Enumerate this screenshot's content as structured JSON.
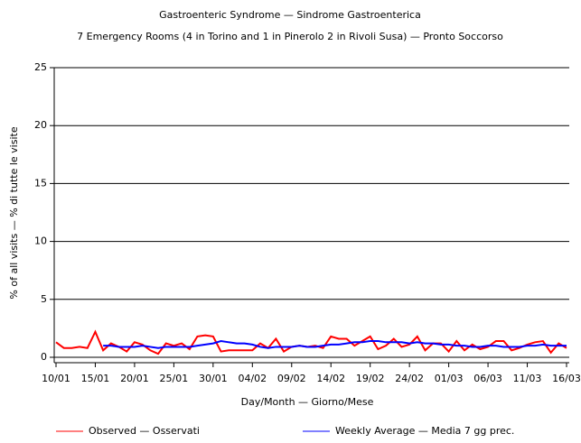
{
  "chart_data": {
    "type": "line",
    "title": "Gastroenteric Syndrome — Sindrome Gastroenterica",
    "subtitle": "7 Emergency Rooms (4 in Torino and 1 in Pinerolo 2 in Rivoli Susa) — Pronto Soccorso",
    "x_label": "Day/Month — Giorno/Mese",
    "y_label": "% of all visits — % di tutte le visite",
    "categories": [
      "10/01",
      null,
      null,
      null,
      null,
      "15/01",
      null,
      null,
      null,
      null,
      "20/01",
      null,
      null,
      null,
      null,
      "25/01",
      null,
      null,
      null,
      null,
      "30/01",
      null,
      null,
      null,
      null,
      "04/02",
      null,
      null,
      null,
      null,
      "09/02",
      null,
      null,
      null,
      null,
      "14/02",
      null,
      null,
      null,
      null,
      "19/02",
      null,
      null,
      null,
      null,
      "24/02",
      null,
      null,
      null,
      null,
      "01/03",
      null,
      null,
      null,
      null,
      "06/03",
      null,
      null,
      null,
      null,
      "11/03",
      null,
      null,
      null,
      null,
      "16/03"
    ],
    "series": [
      {
        "name": "Observed — Osservati",
        "color": "#ff0000",
        "values": [
          1.3,
          0.8,
          0.8,
          0.9,
          0.8,
          2.2,
          0.6,
          1.2,
          0.9,
          0.5,
          1.3,
          1.1,
          0.6,
          0.3,
          1.2,
          1.0,
          1.2,
          0.7,
          1.8,
          1.9,
          1.8,
          0.5,
          0.6,
          0.6,
          0.6,
          0.6,
          1.2,
          0.8,
          1.6,
          0.5,
          0.9,
          1.0,
          0.9,
          1.0,
          0.8,
          1.8,
          1.6,
          1.6,
          1.0,
          1.4,
          1.8,
          0.7,
          1.0,
          1.6,
          0.9,
          1.1,
          1.8,
          0.6,
          1.2,
          1.2,
          0.5,
          1.4,
          0.6,
          1.1,
          0.7,
          0.9,
          1.4,
          1.4,
          0.6,
          0.8,
          1.1,
          1.3,
          1.4,
          0.4,
          1.2,
          0.8
        ]
      },
      {
        "name": "Weekly Average — Media 7 gg prec.",
        "color": "#0000ff",
        "values": [
          null,
          null,
          null,
          null,
          null,
          null,
          1.0,
          1.0,
          0.9,
          0.9,
          0.9,
          1.0,
          0.9,
          0.8,
          0.9,
          0.9,
          0.9,
          0.9,
          1.0,
          1.1,
          1.2,
          1.4,
          1.3,
          1.2,
          1.2,
          1.1,
          0.9,
          0.8,
          0.9,
          0.9,
          0.9,
          1.0,
          0.9,
          0.9,
          1.0,
          1.1,
          1.1,
          1.2,
          1.3,
          1.3,
          1.4,
          1.4,
          1.3,
          1.3,
          1.3,
          1.2,
          1.3,
          1.2,
          1.2,
          1.1,
          1.1,
          1.0,
          1.0,
          0.9,
          0.9,
          1.0,
          1.0,
          0.9,
          0.9,
          0.9,
          1.0,
          1.0,
          1.1,
          1.0,
          1.0,
          1.0
        ]
      }
    ],
    "ylim": [
      0,
      25
    ],
    "yticks": [
      0,
      5,
      10,
      15,
      20,
      25
    ],
    "grid": true
  }
}
